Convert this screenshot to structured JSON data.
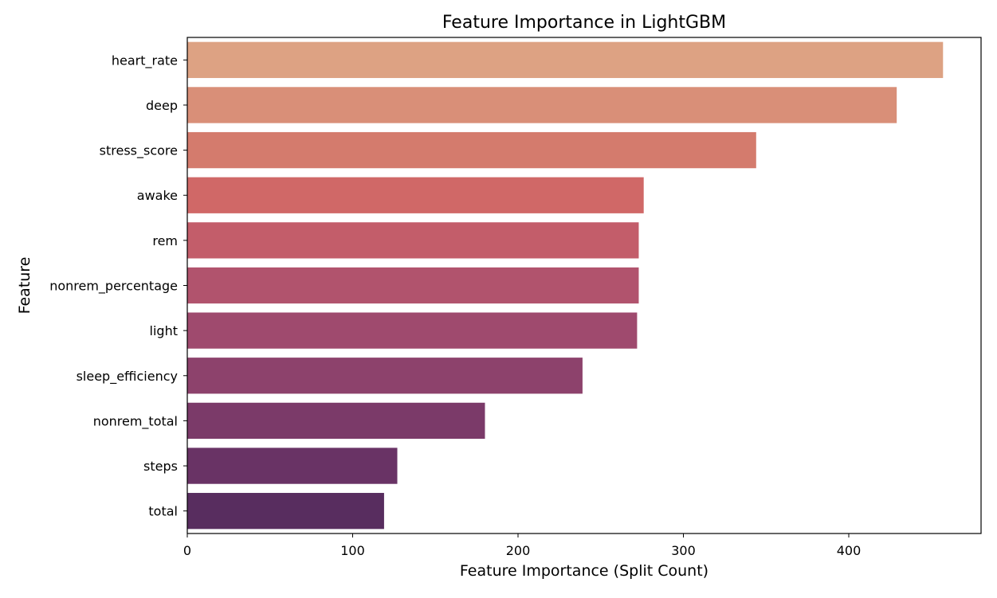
{
  "chart_data": {
    "type": "bar",
    "orientation": "horizontal",
    "title": "Feature Importance in LightGBM",
    "xlabel": "Feature Importance (Split Count)",
    "ylabel": "Feature",
    "categories": [
      "heart_rate",
      "deep",
      "stress_score",
      "awake",
      "rem",
      "nonrem_percentage",
      "light",
      "sleep_efficiency",
      "nonrem_total",
      "steps",
      "total"
    ],
    "values": [
      457,
      429,
      344,
      276,
      273,
      273,
      272,
      239,
      180,
      127,
      119
    ],
    "colors": [
      "#dda283",
      "#d98f78",
      "#d47b6d",
      "#d06867",
      "#c35d6a",
      "#b1536d",
      "#9f4a6e",
      "#8d426c",
      "#7b3a69",
      "#693365",
      "#582d5f"
    ],
    "xlim": [
      0,
      480
    ],
    "xticks": [
      0,
      100,
      200,
      300,
      400
    ],
    "grid": false,
    "legend": "none"
  }
}
